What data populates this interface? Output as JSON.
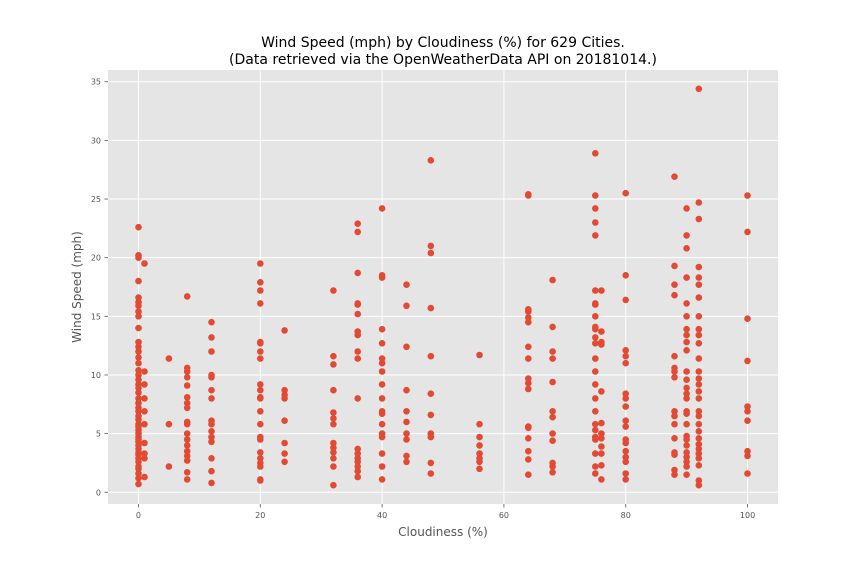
{
  "chart_data": {
    "type": "scatter",
    "title_line1": "Wind Speed (mph) by Cloudiness (%) for 629 Cities.",
    "title_line2": "(Data retrieved via the OpenWeatherData API on 20181014.)",
    "xlabel": "Cloudiness (%)",
    "ylabel": "Wind Speed (mph)",
    "xlim": [
      -5,
      105
    ],
    "ylim": [
      -1,
      36
    ],
    "xticks": [
      0,
      20,
      40,
      60,
      80,
      100
    ],
    "yticks": [
      0,
      5,
      10,
      15,
      20,
      25,
      30,
      35
    ],
    "grid": true,
    "colors": {
      "marker": "#E24A33",
      "plot_bg": "#E5E5E5",
      "grid": "#FFFFFF",
      "tick_text": "#555555"
    },
    "points": [
      [
        0,
        0.7
      ],
      [
        0,
        1.2
      ],
      [
        0,
        1.6
      ],
      [
        0,
        2.0
      ],
      [
        0,
        2.2
      ],
      [
        0,
        2.6
      ],
      [
        0,
        2.9
      ],
      [
        0,
        3.2
      ],
      [
        0,
        3.4
      ],
      [
        0,
        3.7
      ],
      [
        0,
        4.0
      ],
      [
        0,
        4.3
      ],
      [
        0,
        4.5
      ],
      [
        0,
        4.7
      ],
      [
        0,
        5.0
      ],
      [
        0,
        5.3
      ],
      [
        0,
        5.6
      ],
      [
        0,
        5.8
      ],
      [
        0,
        6.2
      ],
      [
        0,
        6.5
      ],
      [
        0,
        6.9
      ],
      [
        0,
        7.2
      ],
      [
        0,
        7.6
      ],
      [
        0,
        8.0
      ],
      [
        0,
        8.5
      ],
      [
        0,
        8.9
      ],
      [
        0,
        9.2
      ],
      [
        0,
        9.6
      ],
      [
        0,
        10.0
      ],
      [
        0,
        10.4
      ],
      [
        0,
        11.0
      ],
      [
        0,
        11.5
      ],
      [
        0,
        12.0
      ],
      [
        0,
        12.4
      ],
      [
        0,
        12.8
      ],
      [
        0,
        14.0
      ],
      [
        0,
        15.0
      ],
      [
        0,
        15.4
      ],
      [
        0,
        15.9
      ],
      [
        0,
        16.2
      ],
      [
        0,
        16.6
      ],
      [
        0,
        18.0
      ],
      [
        0,
        20.0
      ],
      [
        0,
        20.2
      ],
      [
        0,
        22.6
      ],
      [
        1,
        1.3
      ],
      [
        1,
        2.9
      ],
      [
        1,
        3.3
      ],
      [
        1,
        4.2
      ],
      [
        1,
        5.8
      ],
      [
        1,
        6.9
      ],
      [
        1,
        8.0
      ],
      [
        1,
        9.2
      ],
      [
        1,
        10.3
      ],
      [
        1,
        19.5
      ],
      [
        5,
        2.2
      ],
      [
        5,
        5.8
      ],
      [
        5,
        11.4
      ],
      [
        8,
        1.1
      ],
      [
        8,
        1.7
      ],
      [
        8,
        2.7
      ],
      [
        8,
        3.1
      ],
      [
        8,
        3.5
      ],
      [
        8,
        4.0
      ],
      [
        8,
        4.5
      ],
      [
        8,
        5.0
      ],
      [
        8,
        5.8
      ],
      [
        8,
        6.0
      ],
      [
        8,
        7.2
      ],
      [
        8,
        7.6
      ],
      [
        8,
        8.1
      ],
      [
        8,
        9.1
      ],
      [
        8,
        9.8
      ],
      [
        8,
        10.3
      ],
      [
        8,
        10.6
      ],
      [
        8,
        16.7
      ],
      [
        12,
        0.8
      ],
      [
        12,
        1.8
      ],
      [
        12,
        2.9
      ],
      [
        12,
        4.3
      ],
      [
        12,
        4.7
      ],
      [
        12,
        5.2
      ],
      [
        12,
        5.8
      ],
      [
        12,
        6.1
      ],
      [
        12,
        8.0
      ],
      [
        12,
        8.7
      ],
      [
        12,
        9.8
      ],
      [
        12,
        10.0
      ],
      [
        12,
        12.0
      ],
      [
        12,
        13.2
      ],
      [
        12,
        14.5
      ],
      [
        20,
        1.0
      ],
      [
        20,
        1.1
      ],
      [
        20,
        2.2
      ],
      [
        20,
        2.5
      ],
      [
        20,
        2.9
      ],
      [
        20,
        3.4
      ],
      [
        20,
        4.5
      ],
      [
        20,
        4.7
      ],
      [
        20,
        5.8
      ],
      [
        20,
        6.9
      ],
      [
        20,
        8.0
      ],
      [
        20,
        8.1
      ],
      [
        20,
        8.7
      ],
      [
        20,
        9.2
      ],
      [
        20,
        11.4
      ],
      [
        20,
        12.0
      ],
      [
        20,
        12.7
      ],
      [
        20,
        12.8
      ],
      [
        20,
        16.1
      ],
      [
        20,
        17.2
      ],
      [
        20,
        17.9
      ],
      [
        20,
        19.5
      ],
      [
        24,
        2.6
      ],
      [
        24,
        3.3
      ],
      [
        24,
        4.2
      ],
      [
        24,
        6.1
      ],
      [
        24,
        8.0
      ],
      [
        24,
        8.3
      ],
      [
        24,
        8.7
      ],
      [
        24,
        13.8
      ],
      [
        32,
        0.6
      ],
      [
        32,
        2.2
      ],
      [
        32,
        2.9
      ],
      [
        32,
        3.4
      ],
      [
        32,
        3.8
      ],
      [
        32,
        4.2
      ],
      [
        32,
        5.8
      ],
      [
        32,
        6.3
      ],
      [
        32,
        6.8
      ],
      [
        32,
        8.7
      ],
      [
        32,
        10.9
      ],
      [
        32,
        11.6
      ],
      [
        32,
        17.2
      ],
      [
        36,
        1.3
      ],
      [
        36,
        1.8
      ],
      [
        36,
        2.2
      ],
      [
        36,
        2.6
      ],
      [
        36,
        2.9
      ],
      [
        36,
        3.3
      ],
      [
        36,
        3.7
      ],
      [
        36,
        8.0
      ],
      [
        36,
        11.4
      ],
      [
        36,
        12.0
      ],
      [
        36,
        13.4
      ],
      [
        36,
        13.7
      ],
      [
        36,
        15.2
      ],
      [
        36,
        16.0
      ],
      [
        36,
        16.1
      ],
      [
        36,
        18.7
      ],
      [
        36,
        22.2
      ],
      [
        36,
        22.9
      ],
      [
        40,
        1.1
      ],
      [
        40,
        2.2
      ],
      [
        40,
        3.3
      ],
      [
        40,
        4.7
      ],
      [
        40,
        5.0
      ],
      [
        40,
        5.8
      ],
      [
        40,
        6.7
      ],
      [
        40,
        6.9
      ],
      [
        40,
        8.0
      ],
      [
        40,
        9.2
      ],
      [
        40,
        10.3
      ],
      [
        40,
        11.0
      ],
      [
        40,
        11.4
      ],
      [
        40,
        12.7
      ],
      [
        40,
        13.9
      ],
      [
        40,
        18.3
      ],
      [
        40,
        18.5
      ],
      [
        40,
        24.2
      ],
      [
        44,
        2.6
      ],
      [
        44,
        3.1
      ],
      [
        44,
        4.5
      ],
      [
        44,
        5.0
      ],
      [
        44,
        6.0
      ],
      [
        44,
        6.9
      ],
      [
        44,
        8.7
      ],
      [
        44,
        12.4
      ],
      [
        44,
        15.9
      ],
      [
        44,
        17.7
      ],
      [
        48,
        1.6
      ],
      [
        48,
        2.5
      ],
      [
        48,
        4.7
      ],
      [
        48,
        5.0
      ],
      [
        48,
        6.6
      ],
      [
        48,
        8.4
      ],
      [
        48,
        11.6
      ],
      [
        48,
        15.7
      ],
      [
        48,
        20.4
      ],
      [
        48,
        21.0
      ],
      [
        48,
        28.3
      ],
      [
        56,
        2.0
      ],
      [
        56,
        2.6
      ],
      [
        56,
        2.9
      ],
      [
        56,
        3.3
      ],
      [
        56,
        4.0
      ],
      [
        56,
        4.7
      ],
      [
        56,
        5.8
      ],
      [
        56,
        11.7
      ],
      [
        64,
        1.5
      ],
      [
        64,
        2.8
      ],
      [
        64,
        3.5
      ],
      [
        64,
        4.6
      ],
      [
        64,
        5.5
      ],
      [
        64,
        5.6
      ],
      [
        64,
        8.8
      ],
      [
        64,
        9.3
      ],
      [
        64,
        9.7
      ],
      [
        64,
        11.4
      ],
      [
        64,
        12.4
      ],
      [
        64,
        14.5
      ],
      [
        64,
        14.9
      ],
      [
        64,
        15.4
      ],
      [
        64,
        15.6
      ],
      [
        64,
        25.3
      ],
      [
        64,
        25.4
      ],
      [
        68,
        1.7
      ],
      [
        68,
        2.2
      ],
      [
        68,
        2.5
      ],
      [
        68,
        4.4
      ],
      [
        68,
        5.0
      ],
      [
        68,
        6.4
      ],
      [
        68,
        6.9
      ],
      [
        68,
        9.4
      ],
      [
        68,
        11.4
      ],
      [
        68,
        12.0
      ],
      [
        68,
        14.1
      ],
      [
        68,
        18.1
      ],
      [
        75,
        1.6
      ],
      [
        75,
        2.2
      ],
      [
        75,
        3.3
      ],
      [
        75,
        4.5
      ],
      [
        75,
        4.7
      ],
      [
        75,
        5.3
      ],
      [
        75,
        5.8
      ],
      [
        75,
        6.9
      ],
      [
        75,
        8.0
      ],
      [
        75,
        9.2
      ],
      [
        75,
        10.3
      ],
      [
        75,
        11.4
      ],
      [
        75,
        12.7
      ],
      [
        75,
        13.2
      ],
      [
        75,
        13.9
      ],
      [
        75,
        14.1
      ],
      [
        75,
        15.0
      ],
      [
        75,
        16.0
      ],
      [
        75,
        16.1
      ],
      [
        75,
        17.2
      ],
      [
        75,
        21.9
      ],
      [
        75,
        23.0
      ],
      [
        75,
        24.2
      ],
      [
        75,
        25.3
      ],
      [
        75,
        28.9
      ],
      [
        76,
        1.1
      ],
      [
        76,
        2.3
      ],
      [
        76,
        3.3
      ],
      [
        76,
        3.9
      ],
      [
        76,
        4.6
      ],
      [
        76,
        5.0
      ],
      [
        76,
        5.9
      ],
      [
        76,
        8.6
      ],
      [
        76,
        12.6
      ],
      [
        76,
        12.8
      ],
      [
        76,
        13.7
      ],
      [
        76,
        17.2
      ],
      [
        80,
        1.1
      ],
      [
        80,
        1.6
      ],
      [
        80,
        2.6
      ],
      [
        80,
        3.0
      ],
      [
        80,
        3.5
      ],
      [
        80,
        4.2
      ],
      [
        80,
        4.5
      ],
      [
        80,
        5.6
      ],
      [
        80,
        6.1
      ],
      [
        80,
        7.3
      ],
      [
        80,
        8.0
      ],
      [
        80,
        8.4
      ],
      [
        80,
        11.0
      ],
      [
        80,
        11.6
      ],
      [
        80,
        12.1
      ],
      [
        80,
        16.4
      ],
      [
        80,
        18.5
      ],
      [
        80,
        25.5
      ],
      [
        88,
        1.5
      ],
      [
        88,
        1.9
      ],
      [
        88,
        3.2
      ],
      [
        88,
        3.4
      ],
      [
        88,
        4.6
      ],
      [
        88,
        5.8
      ],
      [
        88,
        6.5
      ],
      [
        88,
        6.9
      ],
      [
        88,
        9.8
      ],
      [
        88,
        10.3
      ],
      [
        88,
        10.6
      ],
      [
        88,
        11.6
      ],
      [
        88,
        16.8
      ],
      [
        88,
        17.7
      ],
      [
        88,
        19.3
      ],
      [
        88,
        26.9
      ],
      [
        90,
        1.5
      ],
      [
        90,
        2.2
      ],
      [
        90,
        2.6
      ],
      [
        90,
        3.0
      ],
      [
        90,
        3.4
      ],
      [
        90,
        4.0
      ],
      [
        90,
        4.5
      ],
      [
        90,
        4.8
      ],
      [
        90,
        5.8
      ],
      [
        90,
        6.7
      ],
      [
        90,
        6.9
      ],
      [
        90,
        8.0
      ],
      [
        90,
        8.4
      ],
      [
        90,
        8.9
      ],
      [
        90,
        9.6
      ],
      [
        90,
        10.3
      ],
      [
        90,
        12.1
      ],
      [
        90,
        12.8
      ],
      [
        90,
        13.4
      ],
      [
        90,
        13.9
      ],
      [
        90,
        15.0
      ],
      [
        90,
        16.1
      ],
      [
        90,
        18.3
      ],
      [
        90,
        20.8
      ],
      [
        90,
        21.9
      ],
      [
        90,
        24.2
      ],
      [
        92,
        0.6
      ],
      [
        92,
        1.0
      ],
      [
        92,
        2.3
      ],
      [
        92,
        2.9
      ],
      [
        92,
        3.3
      ],
      [
        92,
        3.7
      ],
      [
        92,
        4.1
      ],
      [
        92,
        4.6
      ],
      [
        92,
        5.2
      ],
      [
        92,
        5.8
      ],
      [
        92,
        6.5
      ],
      [
        92,
        6.9
      ],
      [
        92,
        8.0
      ],
      [
        92,
        8.6
      ],
      [
        92,
        9.2
      ],
      [
        92,
        9.7
      ],
      [
        92,
        10.3
      ],
      [
        92,
        11.4
      ],
      [
        92,
        12.7
      ],
      [
        92,
        13.4
      ],
      [
        92,
        13.9
      ],
      [
        92,
        15.0
      ],
      [
        92,
        16.6
      ],
      [
        92,
        17.7
      ],
      [
        92,
        18.3
      ],
      [
        92,
        19.2
      ],
      [
        92,
        23.3
      ],
      [
        92,
        24.7
      ],
      [
        92,
        34.4
      ],
      [
        100,
        1.6
      ],
      [
        100,
        3.1
      ],
      [
        100,
        3.5
      ],
      [
        100,
        6.1
      ],
      [
        100,
        6.9
      ],
      [
        100,
        7.3
      ],
      [
        100,
        11.2
      ],
      [
        100,
        14.8
      ],
      [
        100,
        22.2
      ],
      [
        100,
        25.3
      ]
    ]
  }
}
